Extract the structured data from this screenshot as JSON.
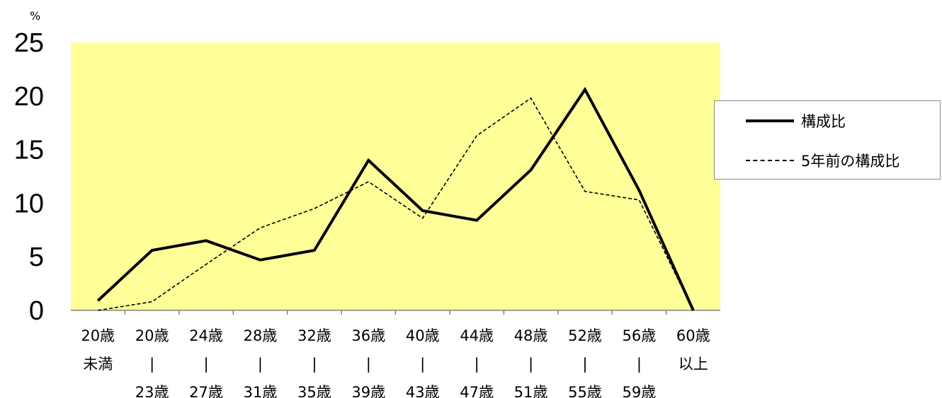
{
  "chart_data": {
    "type": "line",
    "unit_label": "%",
    "ylim": [
      0,
      25
    ],
    "yticks": [
      "0",
      "5",
      "10",
      "15",
      "20",
      "25"
    ],
    "categories": [
      [
        "20歳",
        "未満",
        ""
      ],
      [
        "20歳",
        "|",
        "23歳"
      ],
      [
        "24歳",
        "|",
        "27歳"
      ],
      [
        "28歳",
        "|",
        "31歳"
      ],
      [
        "32歳",
        "|",
        "35歳"
      ],
      [
        "36歳",
        "|",
        "39歳"
      ],
      [
        "40歳",
        "|",
        "43歳"
      ],
      [
        "44歳",
        "|",
        "47歳"
      ],
      [
        "48歳",
        "|",
        "51歳"
      ],
      [
        "52歳",
        "|",
        "55歳"
      ],
      [
        "56歳",
        "|",
        "59歳"
      ],
      [
        "60歳",
        "以上",
        ""
      ]
    ],
    "series": [
      {
        "name": "構成比",
        "style": "solid",
        "values": [
          0.9,
          5.6,
          6.5,
          4.7,
          5.6,
          14.0,
          9.3,
          8.4,
          13.1,
          20.6,
          11.2,
          0.0
        ]
      },
      {
        "name": "5年前の構成比",
        "style": "dashed",
        "values": [
          0.0,
          0.8,
          4.3,
          7.7,
          9.5,
          12.0,
          8.6,
          16.3,
          19.8,
          11.1,
          10.3,
          0.0
        ]
      }
    ],
    "legend_position": "right",
    "plot_background": "#ffff99",
    "line_color": "#000000",
    "grid": false
  }
}
